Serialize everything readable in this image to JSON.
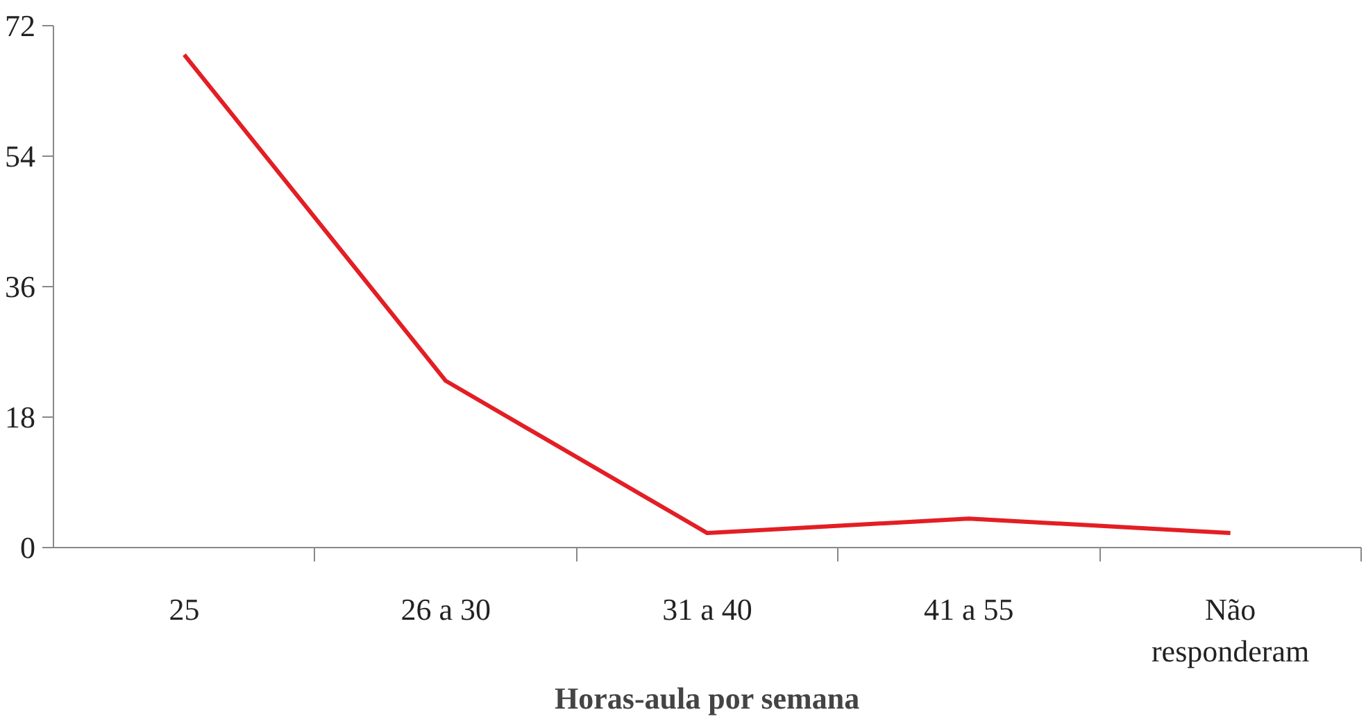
{
  "chart_data": {
    "type": "line",
    "xlabel": "Horas-aula por semana",
    "categories": [
      "25",
      "26 a 30",
      "31 a 40",
      "41 a 55",
      "Não responderam"
    ],
    "series": [
      {
        "color": "#e31e24",
        "values": [
          68,
          23,
          2,
          4,
          2
        ]
      }
    ],
    "ylim": [
      0,
      72
    ],
    "yticks": [
      0,
      18,
      36,
      54,
      72
    ],
    "grid": false,
    "marker": "none",
    "line_style": "solid"
  }
}
